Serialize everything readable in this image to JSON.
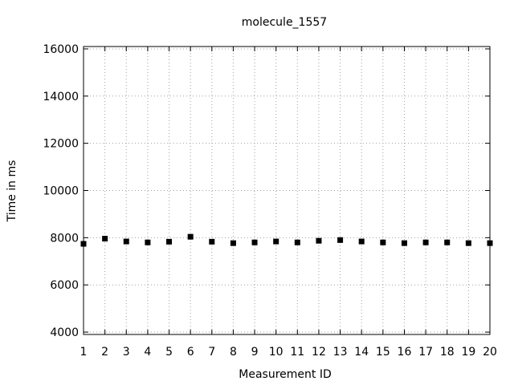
{
  "chart_data": {
    "type": "scatter",
    "title": "molecule_1557",
    "xlabel": "Measurement ID",
    "ylabel": "Time in ms",
    "xlim": [
      1,
      20
    ],
    "ylim": [
      3900,
      16100
    ],
    "grid": true,
    "legend": "none",
    "x_ticks": [
      1,
      2,
      3,
      4,
      5,
      6,
      7,
      8,
      9,
      10,
      11,
      12,
      13,
      14,
      15,
      16,
      17,
      18,
      19,
      20
    ],
    "y_ticks": [
      4000,
      6000,
      8000,
      10000,
      12000,
      14000,
      16000
    ],
    "series": [
      {
        "x": [
          1,
          2,
          3,
          4,
          5,
          6,
          7,
          8,
          9,
          10,
          11,
          12,
          13,
          14,
          15,
          16,
          17,
          18,
          19,
          20
        ],
        "values": [
          7740,
          7960,
          7840,
          7800,
          7830,
          8040,
          7830,
          7770,
          7800,
          7840,
          7800,
          7870,
          7900,
          7840,
          7800,
          7770,
          7800,
          7800,
          7770,
          7770
        ],
        "color": "#000000",
        "marker": "square"
      }
    ]
  }
}
